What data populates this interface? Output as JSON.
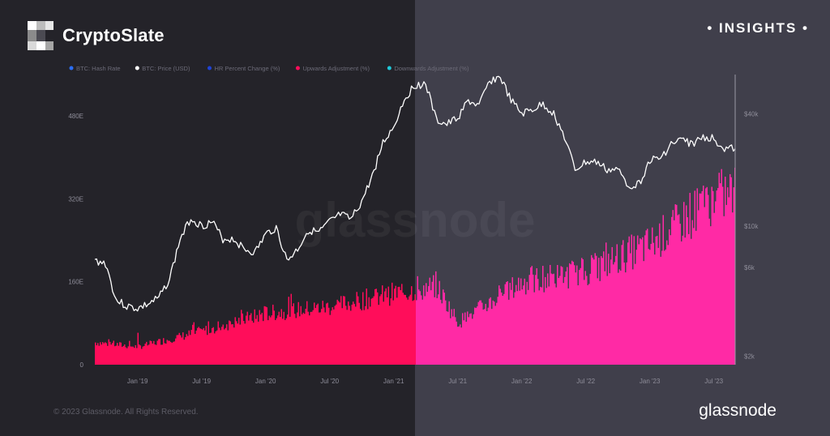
{
  "header": {
    "brand_name": "CryptoSlate",
    "insights_label": "INSIGHTS",
    "insights_dot": "•"
  },
  "footer": {
    "copyright": "© 2023 Glassnode. All Rights Reserved.",
    "source_brand": "glassnode"
  },
  "watermark": "glassnode",
  "colors": {
    "bg_left": "#242329",
    "bg_right": "#403f4b",
    "upwards_left": "#ff0d5a",
    "upwards_right": "#ff2aa5",
    "price_line": "#ffffff",
    "hash_rate": "#2b6ef5",
    "hr_pct": "#1f43d6",
    "downwards": "#1fc8d9"
  },
  "chart_data": {
    "type": "area",
    "title": "",
    "legend_position": "top-left",
    "legend": [
      {
        "name": "BTC: Hash Rate",
        "color": "#2b6ef5"
      },
      {
        "name": "BTC: Price (USD)",
        "color": "#ffffff"
      },
      {
        "name": "HR Percent Change (%)",
        "color": "#1f43d6"
      },
      {
        "name": "Upwards Adjustment (%)",
        "color": "#ff0d5a"
      },
      {
        "name": "Downwards Adjustment (%)",
        "color": "#1fc8d9"
      }
    ],
    "x_ticks": [
      "Jan '19",
      "Jul '19",
      "Jan '20",
      "Jul '20",
      "Jan '21",
      "Jul '21",
      "Jan '22",
      "Jul '22",
      "Jan '23",
      "Jul '23"
    ],
    "x_range": [
      "2018-09",
      "2023-09"
    ],
    "y_left": {
      "ticks": [
        "0",
        "160E",
        "320E",
        "480E"
      ],
      "tick_values": [
        0,
        160,
        320,
        480
      ],
      "range": [
        0,
        560
      ],
      "unit": "EH/s"
    },
    "y_right": {
      "ticks": [
        "$2k",
        "$6k",
        "$10k",
        "$40k"
      ],
      "tick_values": [
        2000,
        6000,
        10000,
        40000
      ],
      "range": [
        1800,
        65000
      ],
      "scale": "log"
    },
    "grid": false,
    "series": [
      {
        "name": "BTC: Price (USD)",
        "axis": "right",
        "dates": [
          "2018-09",
          "2018-10",
          "2018-11",
          "2018-12",
          "2019-01",
          "2019-02",
          "2019-03",
          "2019-04",
          "2019-05",
          "2019-06",
          "2019-07",
          "2019-08",
          "2019-09",
          "2019-10",
          "2019-11",
          "2019-12",
          "2020-01",
          "2020-02",
          "2020-03",
          "2020-04",
          "2020-05",
          "2020-06",
          "2020-07",
          "2020-08",
          "2020-09",
          "2020-10",
          "2020-11",
          "2020-12",
          "2021-01",
          "2021-02",
          "2021-03",
          "2021-04",
          "2021-05",
          "2021-06",
          "2021-07",
          "2021-08",
          "2021-09",
          "2021-10",
          "2021-11",
          "2021-12",
          "2022-01",
          "2022-02",
          "2022-03",
          "2022-04",
          "2022-05",
          "2022-06",
          "2022-07",
          "2022-08",
          "2022-09",
          "2022-10",
          "2022-11",
          "2022-12",
          "2023-01",
          "2023-02",
          "2023-03",
          "2023-04",
          "2023-05",
          "2023-06",
          "2023-07",
          "2023-08",
          "2023-09"
        ],
        "values": [
          6500,
          6300,
          4000,
          3700,
          3600,
          3800,
          4100,
          5200,
          8500,
          11000,
          10000,
          10500,
          8500,
          8500,
          7500,
          7200,
          9000,
          9800,
          6500,
          7500,
          9500,
          9200,
          10500,
          11500,
          10800,
          13500,
          18500,
          28000,
          34000,
          48000,
          57000,
          58000,
          37000,
          35000,
          38000,
          47000,
          44000,
          60000,
          63000,
          47000,
          40000,
          42000,
          45000,
          40000,
          30000,
          20000,
          22000,
          22000,
          20000,
          20000,
          16500,
          16800,
          22500,
          23000,
          27500,
          29000,
          27500,
          30000,
          29500,
          26000,
          26000
        ]
      },
      {
        "name": "BTC: Hash Rate",
        "axis": "left",
        "dates": [
          "2018-09",
          "2019-01",
          "2019-07",
          "2020-01",
          "2020-07",
          "2021-01",
          "2021-05",
          "2021-07",
          "2022-01",
          "2022-07",
          "2023-01",
          "2023-07",
          "2023-09"
        ],
        "values": [
          50,
          40,
          75,
          115,
          130,
          160,
          175,
          95,
          185,
          210,
          270,
          375,
          390
        ]
      }
    ]
  }
}
